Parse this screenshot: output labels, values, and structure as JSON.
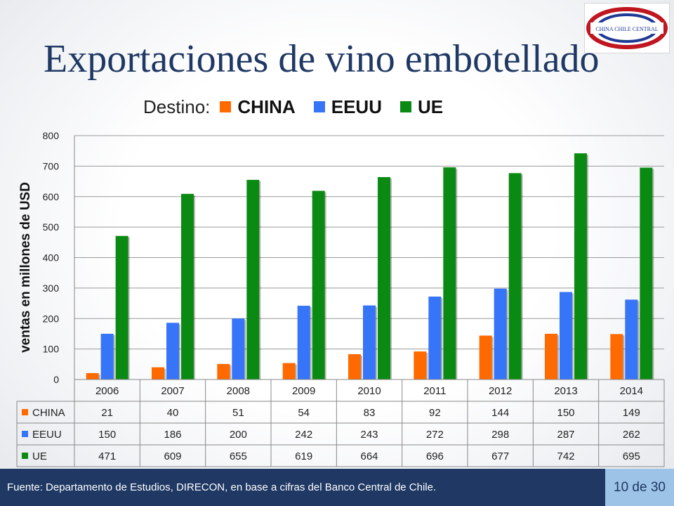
{
  "logo": {
    "text": "CHINA CHILE CENTRAL"
  },
  "slide": {
    "title": "Exportaciones de vino embotellado",
    "footer_source": "Fuente: Departamento de Estudios, DIRECON, en base a cifras del Banco  Central de Chile.",
    "page_number": "10 de 30"
  },
  "legend": {
    "title": "Destino:"
  },
  "colors": {
    "CHINA": "#ff6a00",
    "EEUU": "#3674f8",
    "UE": "#0b8a13",
    "footer": "#1f3864",
    "page_badge": "#9dc3e6"
  },
  "chart_data": {
    "type": "bar",
    "title": "",
    "ylabel": "ventas en millones de  USD",
    "xlabel": "",
    "ylim": [
      0,
      800
    ],
    "yticks": [
      0,
      100,
      200,
      300,
      400,
      500,
      600,
      700,
      800
    ],
    "grid": true,
    "legend_position": "top",
    "data_table": true,
    "categories": [
      "2006",
      "2007",
      "2008",
      "2009",
      "2010",
      "2011",
      "2012",
      "2013",
      "2014"
    ],
    "series": [
      {
        "name": "CHINA",
        "color": "#ff6a00",
        "values": [
          21,
          40,
          51,
          54,
          83,
          92,
          144,
          150,
          149
        ]
      },
      {
        "name": "EEUU",
        "color": "#3674f8",
        "values": [
          150,
          186,
          200,
          242,
          243,
          272,
          298,
          287,
          262
        ]
      },
      {
        "name": "UE",
        "color": "#0b8a13",
        "values": [
          471,
          609,
          655,
          619,
          664,
          696,
          677,
          742,
          695
        ]
      }
    ]
  }
}
